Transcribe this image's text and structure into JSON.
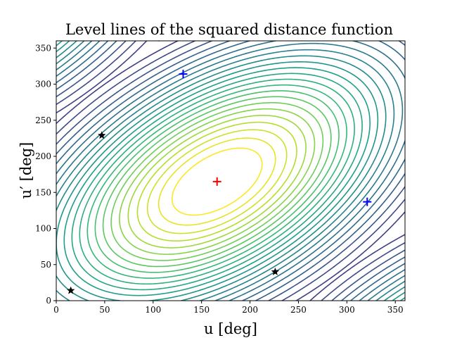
{
  "chart_data": {
    "type": "contour",
    "title": "Level lines of the squared distance function",
    "xlabel": "u [deg]",
    "ylabel": "u′ [deg]",
    "xlim": [
      0,
      360
    ],
    "ylim": [
      0,
      360
    ],
    "xticks": [
      0,
      50,
      100,
      150,
      200,
      250,
      300,
      350
    ],
    "yticks": [
      0,
      50,
      100,
      150,
      200,
      250,
      300,
      350
    ],
    "grid": false,
    "colormap": "viridis",
    "center_marker": {
      "x": 166,
      "y": 165,
      "marker": "+",
      "color": "#ff0000"
    },
    "markers": [
      {
        "x": 131,
        "y": 314,
        "marker": "+",
        "color": "#0000ff"
      },
      {
        "x": 321,
        "y": 137,
        "marker": "+",
        "color": "#0000ff"
      },
      {
        "x": 47,
        "y": 229,
        "marker": "*",
        "color": "#000000"
      },
      {
        "x": 15,
        "y": 14,
        "marker": "*",
        "color": "#000000"
      },
      {
        "x": 226,
        "y": 40,
        "marker": "*",
        "color": "#000000"
      }
    ]
  }
}
